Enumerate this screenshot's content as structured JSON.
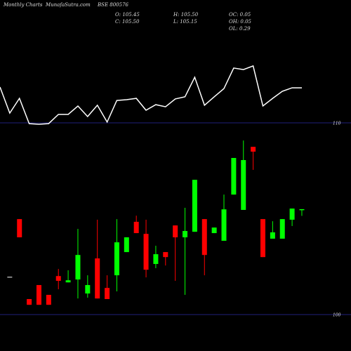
{
  "chart_data": {
    "type": "candlestick",
    "header": {
      "chart_kind": "Monthly Charts",
      "site": "MunafaSutra.com",
      "symbol": "BSE 800576"
    },
    "ohlc_labels": [
      "O: 105.45",
      "C: 105.50",
      "H: 105.50",
      "L: 105.15",
      "OC: 0.05",
      "OH: 0.05",
      "OL: 0.29"
    ],
    "ylim": [
      98.1,
      116.41
    ],
    "yticks": [
      110,
      100
    ],
    "up_color": "#00ff00",
    "down_color": "#ff0000",
    "flat_color": "#aaaaaa",
    "grid_color": "#20207a",
    "open": [
      null,
      101.98,
      104.98,
      100.81,
      101.54,
      101.03,
      102.01,
      101.68,
      101.83,
      101.1,
      102.93,
      101.39,
      102.05,
      103.26,
      104.84,
      104.21,
      102.64,
      103.26,
      104.65,
      104.03,
      104.32,
      104.98,
      104.25,
      103.85,
      106.26,
      105.46,
      108.75,
      104.98,
      103.96,
      103.96,
      104.95,
      105.45
    ],
    "high": [
      null,
      101.98,
      104.98,
      100.81,
      101.54,
      101.03,
      102.38,
      102.31,
      104.47,
      102.05,
      104.95,
      102.05,
      104.98,
      104.03,
      105.16,
      104.95,
      103.59,
      103.26,
      104.65,
      105.57,
      107.03,
      104.98,
      104.54,
      106.26,
      108.17,
      109.08,
      108.75,
      104.98,
      104.87,
      104.98,
      105.53,
      105.5
    ],
    "low": [
      null,
      101.98,
      104.03,
      100.51,
      100.51,
      100.51,
      101.32,
      101.68,
      100.84,
      100.88,
      100.84,
      100.81,
      101.21,
      103.26,
      104.25,
      101.94,
      102.42,
      102.56,
      101.76,
      101.03,
      104.32,
      102.05,
      104.25,
      103.85,
      106.26,
      105.46,
      107.55,
      103.0,
      103.96,
      103.96,
      104.62,
      105.15
    ],
    "close": [
      null,
      101.98,
      104.03,
      100.51,
      100.51,
      100.51,
      101.76,
      101.79,
      103.11,
      101.54,
      100.84,
      100.81,
      103.77,
      104.03,
      104.25,
      102.34,
      103.15,
      103.0,
      104.03,
      104.36,
      107.03,
      103.11,
      104.54,
      105.49,
      108.17,
      108.06,
      108.5,
      103.0,
      104.29,
      104.98,
      105.53,
      105.5
    ],
    "line": {
      "color": "#ffffff",
      "values": [
        111.87,
        110.51,
        111.28,
        109.96,
        109.93,
        109.96,
        110.44,
        110.44,
        110.88,
        110.33,
        110.92,
        110.04,
        111.17,
        111.21,
        111.28,
        110.66,
        110.95,
        110.84,
        111.25,
        111.36,
        112.38,
        110.92,
        111.36,
        111.79,
        112.86,
        112.78,
        112.97,
        110.88,
        111.28,
        111.65,
        111.83,
        111.83
      ]
    }
  }
}
